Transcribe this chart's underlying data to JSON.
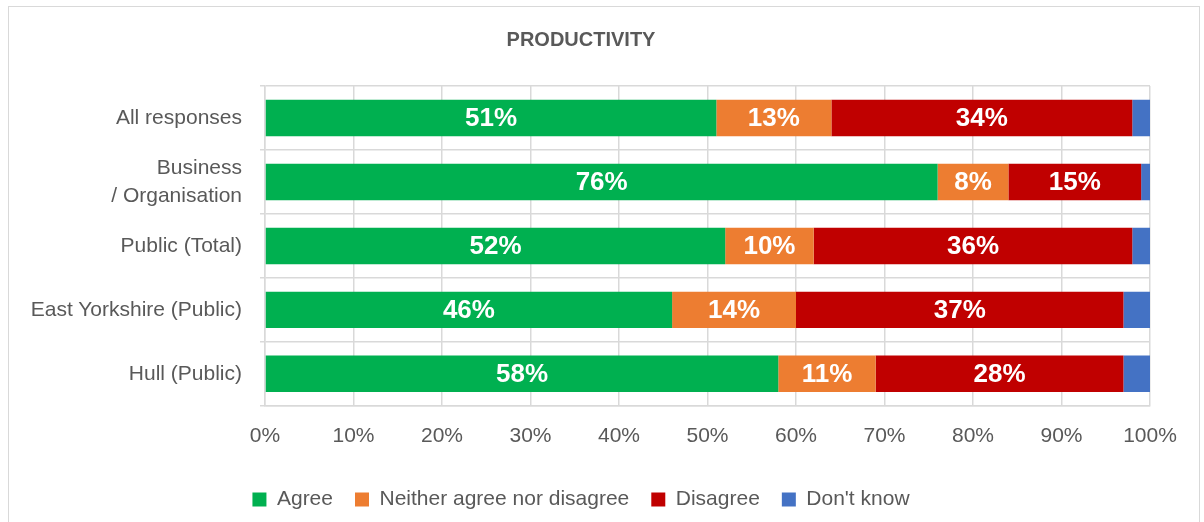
{
  "chart_data": {
    "type": "bar",
    "title": "PRODUCTIVITY",
    "orientation": "horizontal",
    "stacked": true,
    "categories": [
      "All responses",
      "Business\n/ Organisation",
      "Public (Total)",
      "East Yorkshire (Public)",
      "Hull (Public)"
    ],
    "series": [
      {
        "name": "Agree",
        "color": "#00b050",
        "values": [
          51,
          76,
          52,
          46,
          58
        ],
        "value_labels": [
          "51%",
          "76%",
          "52%",
          "46%",
          "58%"
        ]
      },
      {
        "name": "Neither agree nor disagree",
        "color": "#ed7d31",
        "values": [
          13,
          8,
          10,
          14,
          11
        ],
        "value_labels": [
          "13%",
          "8%",
          "10%",
          "14%",
          "11%"
        ]
      },
      {
        "name": "Disagree",
        "color": "#c00000",
        "values": [
          34,
          15,
          36,
          37,
          28
        ],
        "value_labels": [
          "34%",
          "15%",
          "36%",
          "37%",
          "28%"
        ]
      },
      {
        "name": "Don't know",
        "color": "#4472c4",
        "values": [
          2,
          1,
          2,
          3,
          3
        ],
        "value_labels": [
          null,
          null,
          null,
          null,
          null
        ]
      }
    ],
    "xlim": [
      0,
      100
    ],
    "xticks": [
      {
        "value": 0,
        "label": "0%"
      },
      {
        "value": 10,
        "label": "10%"
      },
      {
        "value": 20,
        "label": "20%"
      },
      {
        "value": 30,
        "label": "30%"
      },
      {
        "value": 40,
        "label": "40%"
      },
      {
        "value": 50,
        "label": "50%"
      },
      {
        "value": 60,
        "label": "60%"
      },
      {
        "value": 70,
        "label": "70%"
      },
      {
        "value": 80,
        "label": "80%"
      },
      {
        "value": 90,
        "label": "90%"
      },
      {
        "value": 100,
        "label": "100%"
      }
    ],
    "grid": true,
    "legend": "bottom"
  }
}
